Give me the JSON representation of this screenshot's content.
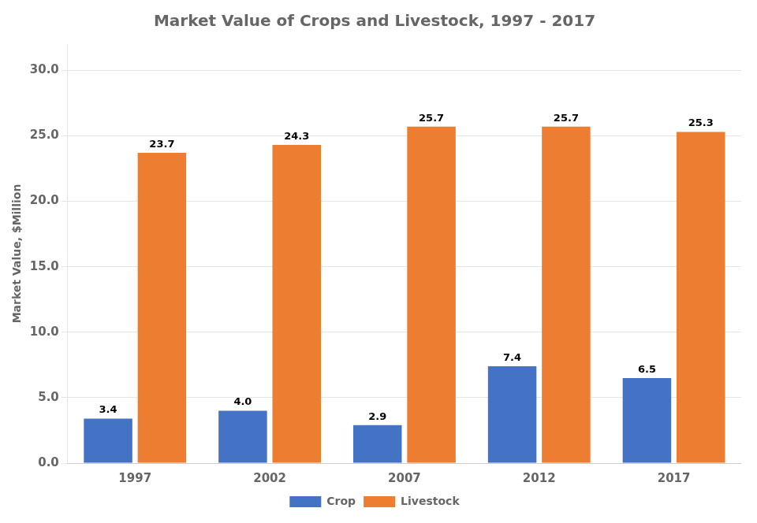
{
  "chart_data": {
    "type": "bar",
    "title": "Market Value of Crops and Livestock, 1997 - 2017",
    "ylabel": "Market Value, $Million",
    "categories": [
      "1997",
      "2002",
      "2007",
      "2012",
      "2017"
    ],
    "series": [
      {
        "name": "Crop",
        "color": "#4472C4",
        "values": [
          3.4,
          4.0,
          2.9,
          7.4,
          6.5
        ],
        "value_labels": [
          "3.4",
          "4.0",
          "2.9",
          "7.4",
          "6.5"
        ]
      },
      {
        "name": "Livestock",
        "color": "#ED7D31",
        "values": [
          23.7,
          24.3,
          25.7,
          25.7,
          25.3
        ]
      }
    ],
    "ylim": [
      0,
      32
    ],
    "yticks": [
      {
        "value": 0,
        "label": "0.0"
      },
      {
        "value": 5,
        "label": "5.0"
      },
      {
        "value": 10,
        "label": "10.0"
      },
      {
        "value": 15,
        "label": "15.0"
      },
      {
        "value": 20,
        "label": "20.0"
      },
      {
        "value": 25,
        "label": "25.0"
      },
      {
        "value": 30,
        "label": "30.0"
      }
    ],
    "grid": true,
    "legend": "bottom",
    "data_labels": true
  }
}
